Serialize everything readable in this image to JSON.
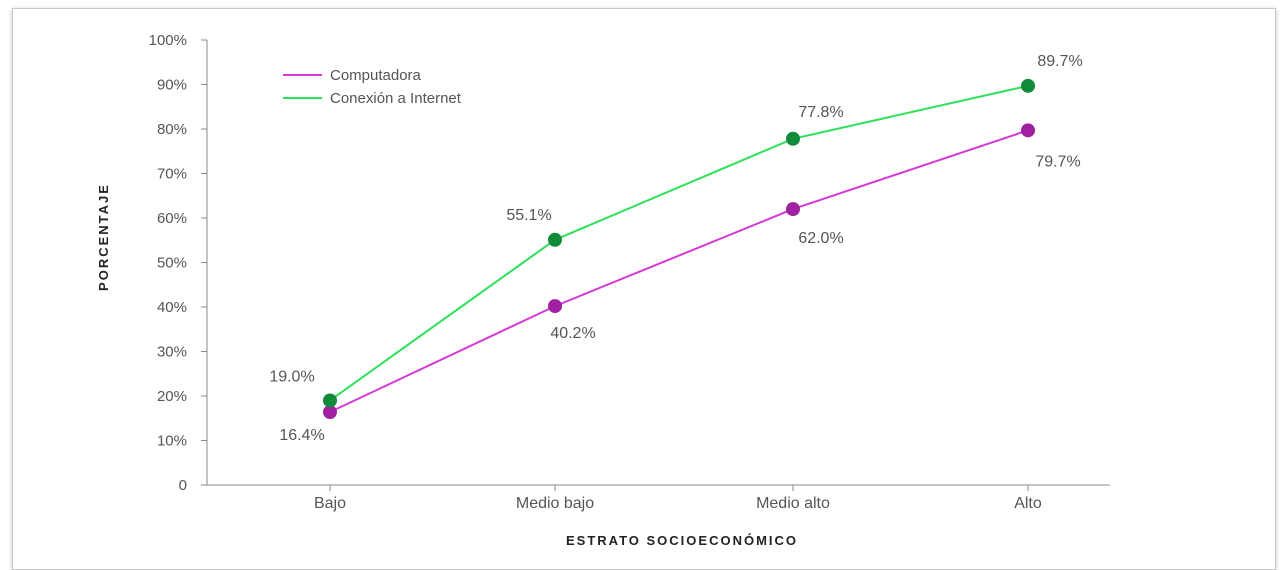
{
  "chart_data": {
    "type": "line",
    "categories": [
      "Bajo",
      "Medio bajo",
      "Medio alto",
      "Alto"
    ],
    "series": [
      {
        "name": "Computadora",
        "values": [
          16.4,
          40.2,
          62.0,
          79.7
        ],
        "color": "#d63ad6",
        "marker_color": "#a020a0",
        "labels": [
          "16.4%",
          "40.2%",
          "62.0%",
          "79.7%"
        ]
      },
      {
        "name": "Conexión a Internet",
        "values": [
          19.0,
          55.1,
          77.8,
          89.7
        ],
        "color": "#2ee05a",
        "marker_color": "#118a3a",
        "labels": [
          "19.0%",
          "55.1%",
          "77.8%",
          "89.7%"
        ]
      }
    ],
    "yticks": [
      "0",
      "10%",
      "20%",
      "30%",
      "40%",
      "50%",
      "60%",
      "70%",
      "80%",
      "90%",
      "100%"
    ],
    "ylim": [
      0,
      100
    ],
    "ylabel": "PORCENTAJE",
    "xlabel": "ESTRATO SOCIOECONÓMICO",
    "legend": "top-left",
    "grid": false
  }
}
